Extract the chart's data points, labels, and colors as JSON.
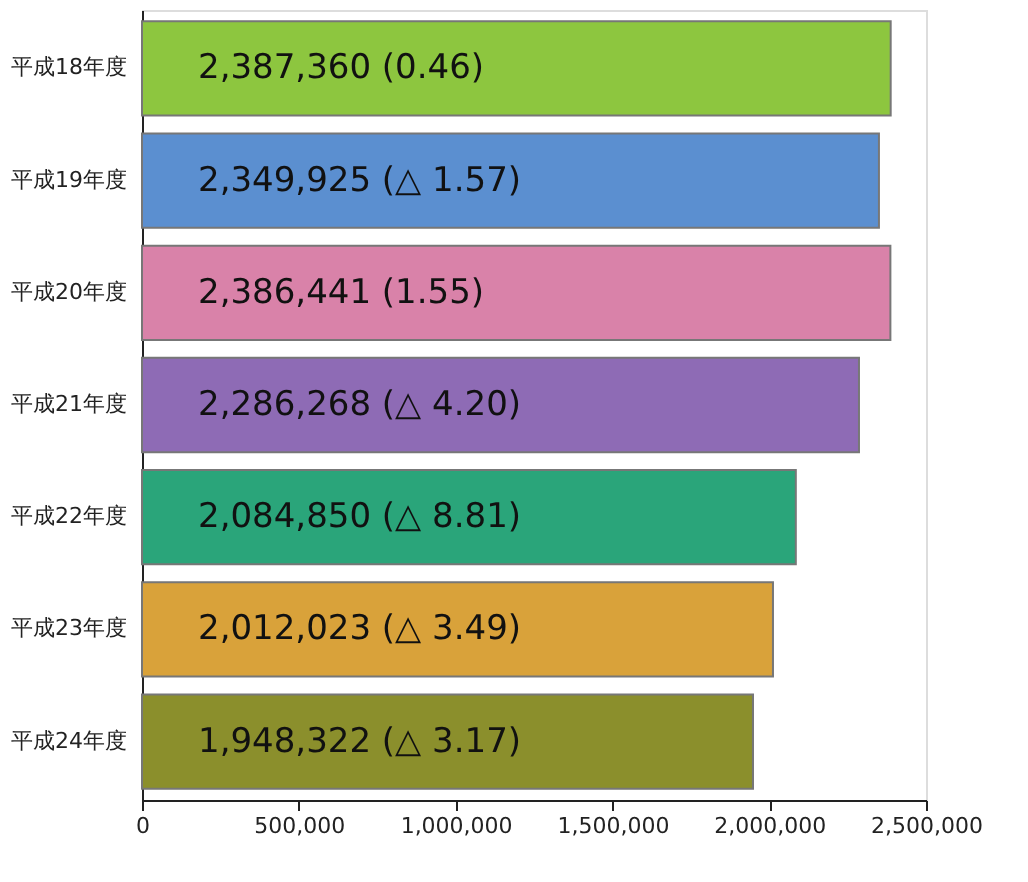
{
  "chart_data": {
    "type": "bar",
    "orientation": "horizontal",
    "categories": [
      "平成18年度",
      "平成19年度",
      "平成20年度",
      "平成21年度",
      "平成22年度",
      "平成23年度",
      "平成24年度"
    ],
    "values": [
      2387360,
      2349925,
      2386441,
      2286268,
      2084850,
      2012023,
      1948322
    ],
    "colors": [
      "#8dc63f",
      "#5b8fd0",
      "#d982a9",
      "#8e6bb5",
      "#2aa57a",
      "#d9a23a",
      "#8b8f2c"
    ],
    "value_labels": [
      "2,387,360 (0.46)",
      "2,349,925 (△ 1.57)",
      "2,386,441 (1.55)",
      "2,286,268 (△ 4.20)",
      "2,084,850 (△ 8.81)",
      "2,012,023 (△ 3.49)",
      "1,948,322 (△ 3.17)"
    ],
    "xlim": [
      0,
      2500000
    ],
    "xticks": [
      0,
      {
        "value": 500000,
        "label": "500,000"
      },
      {
        "value": 1000000,
        "label": "1,000,000"
      },
      {
        "value": 1500000,
        "label": "1,500,000"
      },
      {
        "value": 2000000,
        "label": "2,000,000"
      },
      {
        "value": 2500000,
        "label": "2,500,000"
      }
    ],
    "grid": false,
    "legend": false
  }
}
